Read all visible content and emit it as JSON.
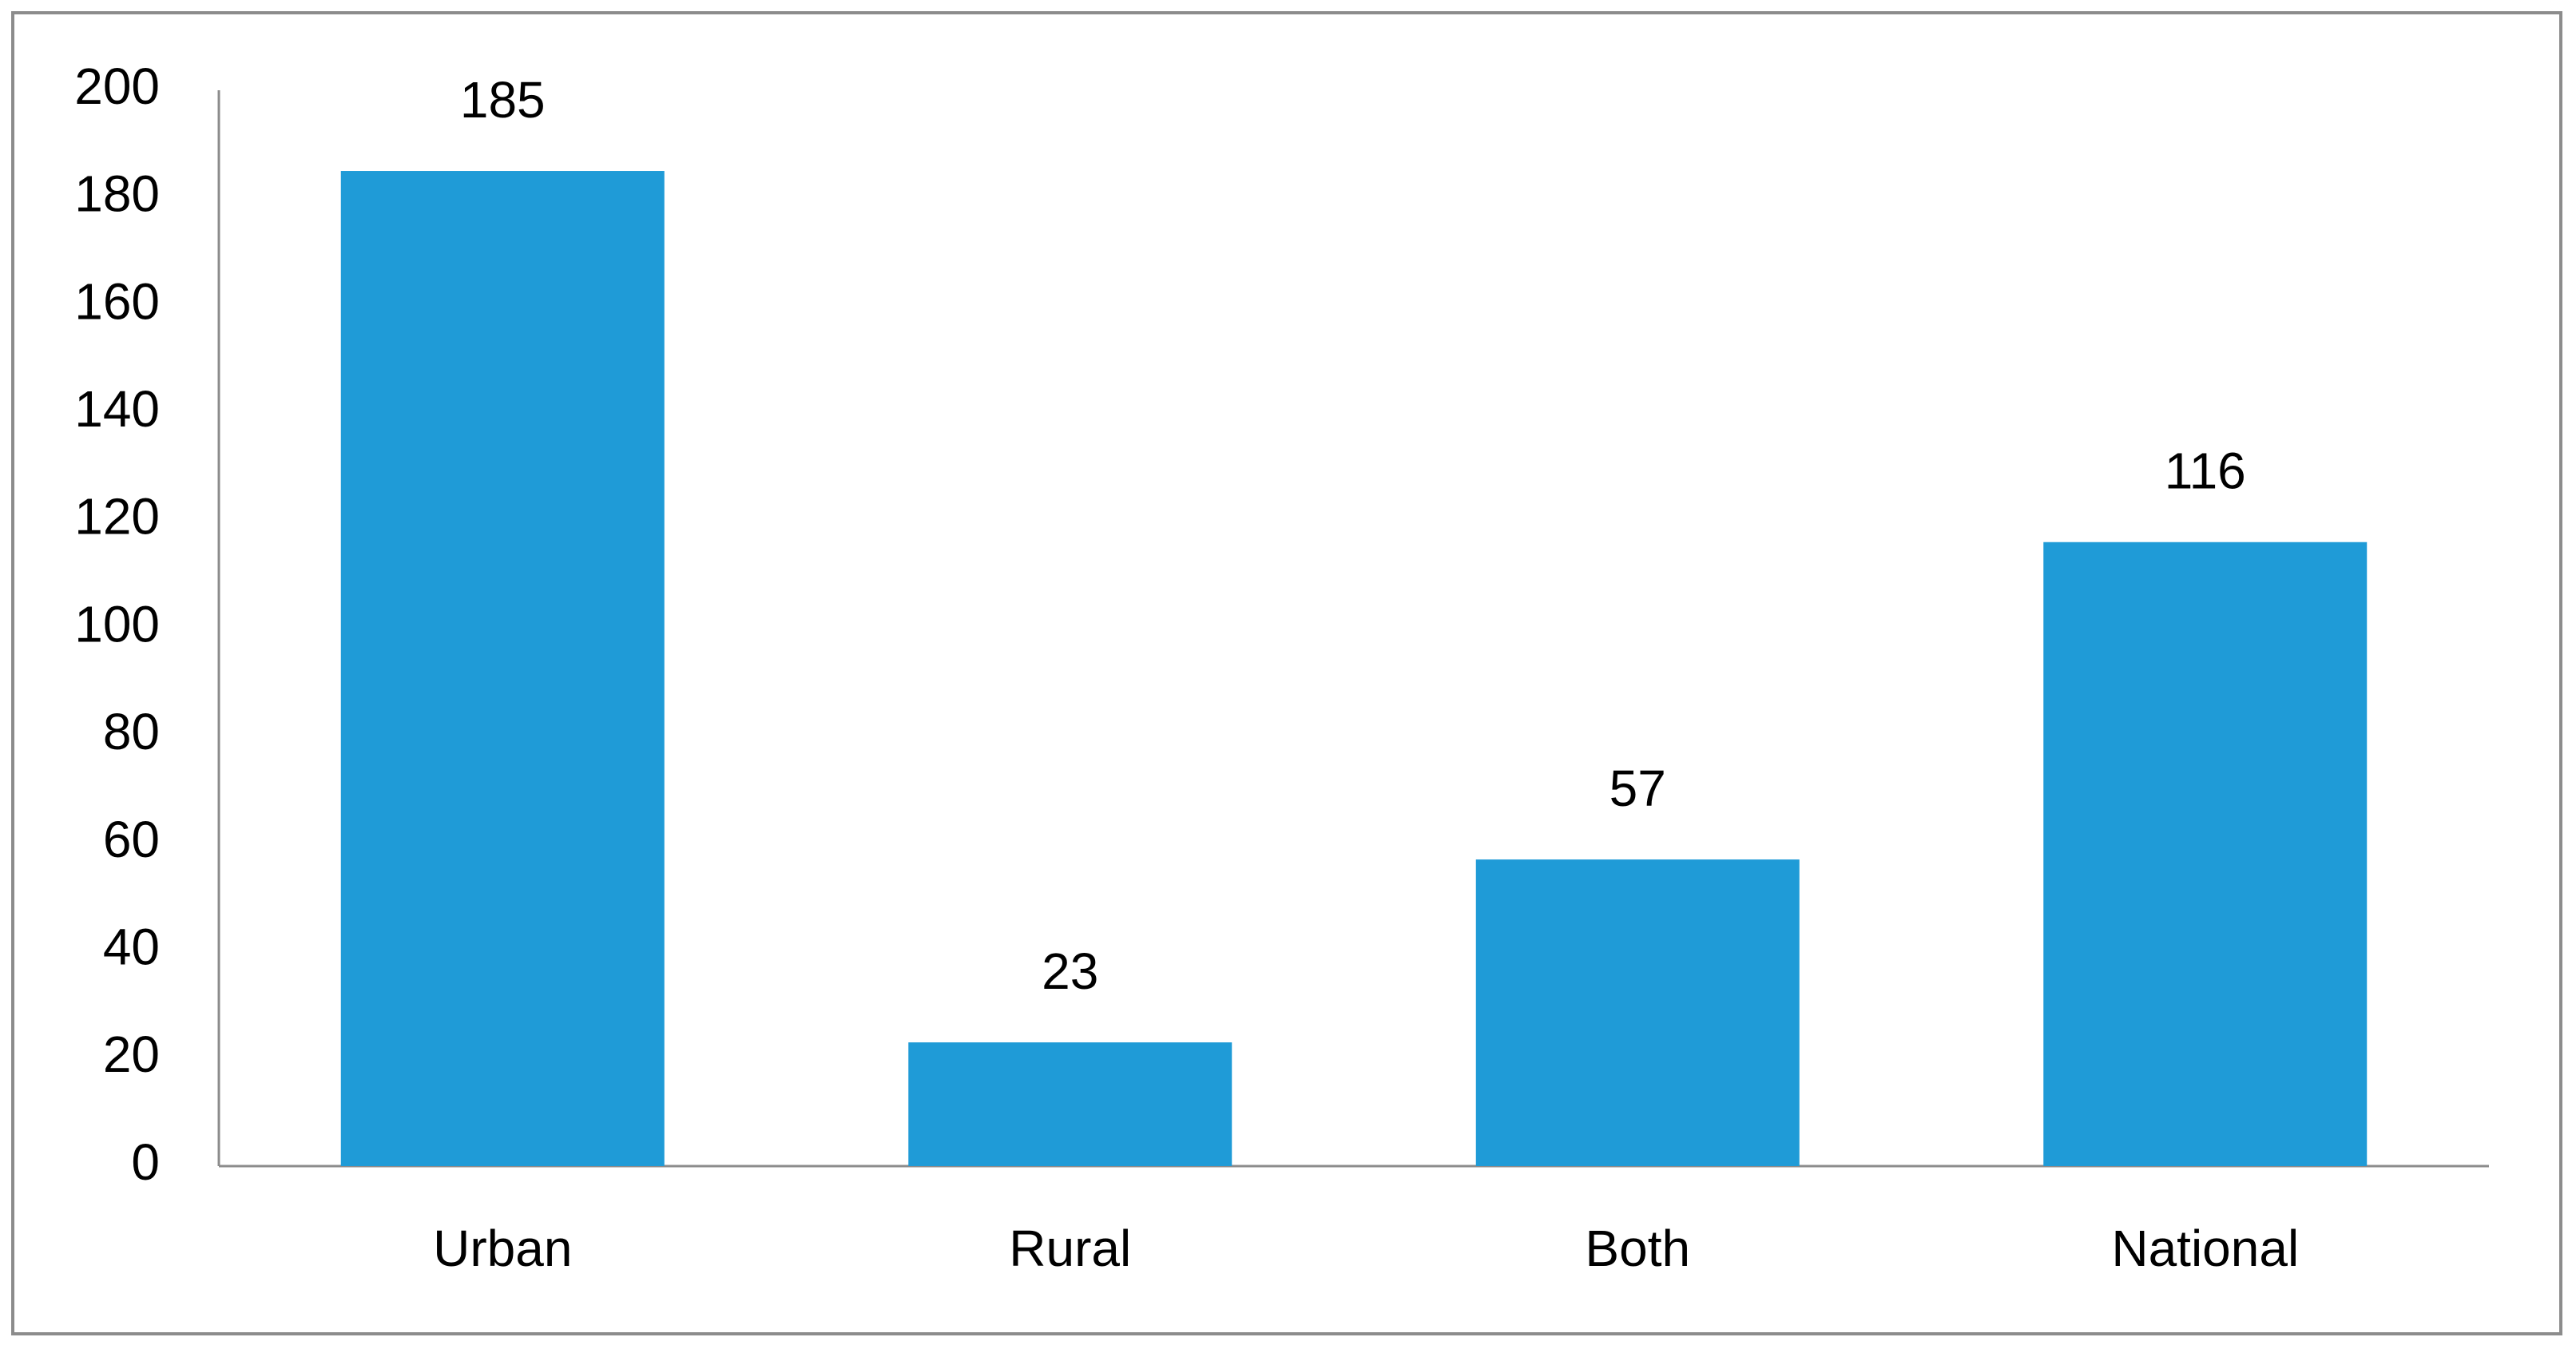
{
  "chart_data": {
    "type": "bar",
    "categories": [
      "Urban",
      "Rural",
      "Both",
      "National"
    ],
    "values": [
      185,
      23,
      57,
      116
    ],
    "color": "#1f9bd7",
    "ylim": [
      0,
      200
    ],
    "yticks": [
      0,
      20,
      40,
      60,
      80,
      100,
      120,
      140,
      160,
      180,
      200
    ],
    "grid": false,
    "data_labels": true
  }
}
